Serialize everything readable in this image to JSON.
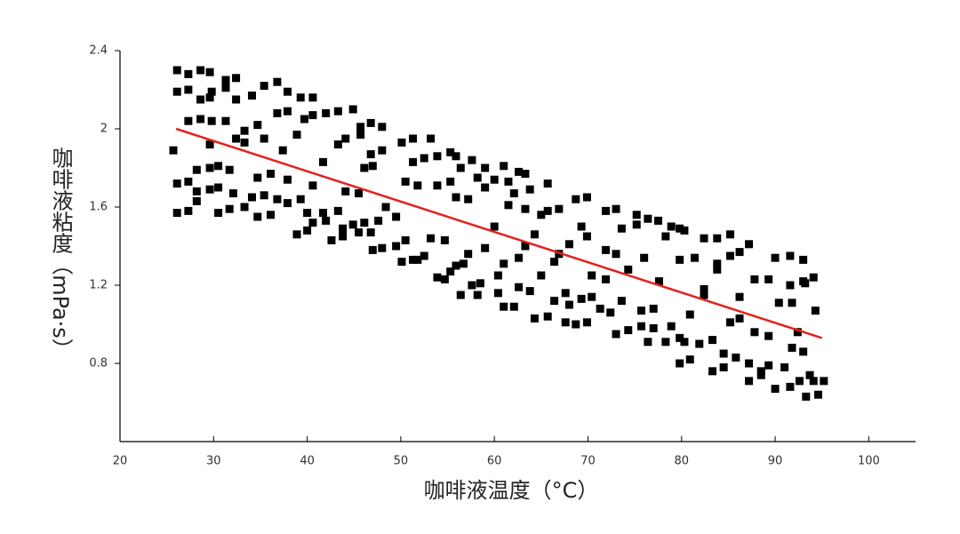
{
  "chart_data": {
    "type": "scatter",
    "x_label": "咖啡液温度（°C）",
    "y_label": "咖啡液粘度（mPa·s）",
    "xlim": [
      20,
      105
    ],
    "ylim": [
      0.4,
      2.4
    ],
    "xticks": [
      20,
      30,
      40,
      50,
      60,
      70,
      80,
      90,
      100
    ],
    "yticks": [
      0.8,
      1.2,
      1.6,
      2,
      2.4
    ],
    "color": "#000000",
    "x": [
      25.7,
      26.1,
      26.1,
      26.1,
      26.1,
      27.3,
      27.3,
      27.3,
      27.3,
      27.3,
      28.2,
      28.2,
      28.2,
      28.6,
      28.6,
      28.6,
      29.6,
      29.6,
      29.6,
      29.6,
      29.6,
      29.8,
      29.8,
      30.5,
      30.5,
      30.5,
      31.3,
      31.3,
      31.3,
      31.7,
      31.7,
      32.1,
      32.4,
      32.4,
      32.4,
      33.3,
      33.3,
      33.3,
      34.1,
      34.1,
      34.7,
      34.7,
      34.7,
      35.4,
      35.4,
      35.4,
      36.1,
      36.1,
      36.8,
      36.8,
      36.8,
      37.4,
      37.9,
      37.9,
      37.9,
      37.9,
      38.9,
      38.9,
      39.3,
      39.3,
      39.7,
      40.0,
      40.0,
      40.6,
      40.6,
      40.6,
      40.6,
      41.7,
      41.7,
      42.0,
      42.0,
      42.6,
      43.3,
      43.3,
      43.3,
      43.8,
      43.8,
      44.1,
      44.1,
      44.9,
      44.9,
      45.5,
      45.5,
      45.7,
      45.7,
      46.1,
      46.1,
      46.8,
      46.8,
      46.8,
      47.0,
      47.0,
      47.6,
      48.0,
      48.0,
      48.0,
      48.4,
      49.5,
      49.5,
      50.1,
      50.1,
      50.5,
      50.5,
      51.3,
      51.3,
      51.3,
      51.8,
      51.8,
      52.5,
      52.5,
      53.2,
      53.2,
      53.9,
      53.9,
      53.9,
      54.7,
      54.7,
      55.3,
      55.3,
      55.3,
      55.9,
      55.9,
      55.9,
      56.4,
      56.4,
      56.7,
      57.2,
      57.2,
      57.6,
      57.6,
      58.2,
      58.2,
      58.5,
      59.0,
      59.0,
      59.0,
      60.0,
      60.0,
      60.4,
      60.4,
      61.0,
      61.0,
      61.0,
      61.5,
      61.5,
      62.1,
      62.1,
      62.6,
      62.6,
      62.6,
      63.3,
      63.3,
      63.3,
      63.8,
      63.8,
      64.3,
      64.3,
      65.0,
      65.0,
      65.7,
      65.7,
      65.7,
      66.4,
      66.4,
      66.9,
      66.9,
      67.6,
      67.6,
      68.0,
      68.0,
      68.7,
      68.7,
      69.3,
      69.3,
      69.9,
      69.9,
      69.9,
      70.4,
      70.4,
      71.3,
      71.9,
      71.9,
      71.9,
      72.4,
      73.0,
      73.0,
      73.0,
      73.6,
      73.6,
      74.3,
      74.3,
      75.2,
      75.2,
      75.7,
      75.7,
      76.0,
      76.4,
      76.4,
      77.0,
      77.0,
      77.5,
      77.6,
      78.3,
      78.3,
      78.9,
      78.9,
      79.8,
      79.8,
      79.8,
      79.8,
      80.3,
      80.3,
      80.9,
      80.9,
      81.4,
      81.9,
      82.4,
      82.4,
      82.4,
      83.3,
      83.3,
      83.8,
      83.8,
      83.8,
      84.5,
      84.5,
      85.2,
      85.2,
      85.2,
      85.8,
      86.2,
      86.2,
      86.2,
      87.2,
      87.2,
      87.2,
      87.8,
      87.8,
      88.5,
      88.5,
      89.3,
      89.3,
      89.3,
      90.0,
      90.0,
      90.4,
      91.0,
      91.6,
      91.6,
      91.6,
      91.8,
      91.8,
      92.4,
      92.6,
      93.0,
      93.0,
      93.0,
      93.2,
      93.3,
      93.7,
      94.1,
      94.1,
      94.3,
      94.6,
      95.2
    ],
    "values": [
      1.89,
      2.3,
      2.19,
      1.72,
      1.57,
      2.28,
      2.2,
      2.04,
      1.73,
      1.58,
      1.79,
      1.68,
      1.63,
      2.3,
      2.15,
      2.05,
      2.29,
      2.16,
      1.92,
      1.8,
      1.69,
      2.19,
      2.04,
      1.81,
      1.7,
      1.57,
      2.25,
      2.21,
      2.04,
      1.79,
      1.59,
      1.67,
      2.26,
      2.15,
      1.95,
      1.99,
      1.93,
      1.6,
      2.17,
      1.65,
      2.02,
      1.75,
      1.55,
      2.22,
      1.95,
      1.66,
      1.77,
      1.56,
      2.24,
      2.08,
      1.64,
      1.89,
      2.19,
      2.09,
      1.74,
      1.62,
      1.97,
      1.46,
      2.16,
      1.64,
      2.05,
      1.57,
      1.48,
      2.16,
      2.07,
      1.71,
      1.52,
      1.83,
      1.57,
      2.08,
      1.53,
      1.43,
      2.09,
      1.92,
      1.58,
      1.49,
      1.45,
      1.95,
      1.68,
      2.1,
      1.51,
      1.67,
      1.47,
      2.01,
      1.97,
      1.8,
      1.52,
      2.03,
      1.87,
      1.47,
      1.81,
      1.38,
      1.53,
      2.01,
      1.89,
      1.39,
      1.6,
      1.55,
      1.4,
      1.93,
      1.32,
      1.73,
      1.43,
      1.95,
      1.83,
      1.33,
      1.71,
      1.33,
      1.85,
      1.35,
      1.95,
      1.44,
      1.86,
      1.71,
      1.24,
      1.43,
      1.23,
      1.88,
      1.73,
      1.27,
      1.86,
      1.3,
      1.65,
      1.8,
      1.15,
      1.31,
      1.64,
      1.36,
      1.84,
      1.2,
      1.75,
      1.15,
      1.21,
      1.8,
      1.39,
      1.7,
      1.74,
      1.5,
      1.25,
      1.16,
      1.81,
      1.31,
      1.09,
      1.61,
      1.73,
      1.67,
      1.09,
      1.78,
      1.34,
      1.19,
      1.77,
      1.59,
      1.4,
      1.69,
      1.17,
      1.46,
      1.03,
      1.56,
      1.25,
      1.58,
      1.72,
      1.04,
      1.32,
      1.12,
      1.59,
      1.36,
      1.01,
      1.16,
      1.41,
      1.1,
      1.64,
      1.0,
      1.5,
      1.13,
      1.65,
      1.45,
      1.01,
      1.25,
      1.14,
      1.08,
      1.58,
      1.23,
      1.38,
      1.06,
      1.59,
      1.36,
      0.95,
      1.12,
      1.49,
      0.97,
      1.28,
      1.56,
      1.51,
      1.07,
      0.99,
      1.34,
      1.54,
      0.91,
      0.98,
      1.08,
      1.53,
      1.22,
      1.45,
      0.91,
      1.5,
      0.99,
      1.49,
      1.33,
      0.93,
      0.8,
      1.48,
      0.91,
      1.05,
      0.82,
      1.34,
      0.9,
      1.44,
      1.18,
      1.15,
      0.92,
      0.76,
      1.44,
      1.31,
      1.28,
      0.78,
      0.85,
      1.46,
      1.35,
      1.01,
      0.83,
      1.37,
      1.14,
      1.03,
      1.41,
      0.71,
      0.8,
      1.23,
      0.96,
      0.76,
      0.74,
      1.23,
      0.94,
      0.79,
      1.34,
      0.67,
      1.11,
      0.78,
      1.35,
      1.2,
      0.68,
      1.11,
      0.88,
      0.96,
      0.71,
      1.33,
      1.22,
      0.86,
      1.21,
      0.63,
      0.74,
      1.24,
      0.71,
      1.07,
      0.64,
      0.71
    ],
    "trend_line": {
      "x": [
        26,
        95
      ],
      "values": [
        2.0,
        0.93
      ],
      "color": "#e3211c"
    }
  }
}
